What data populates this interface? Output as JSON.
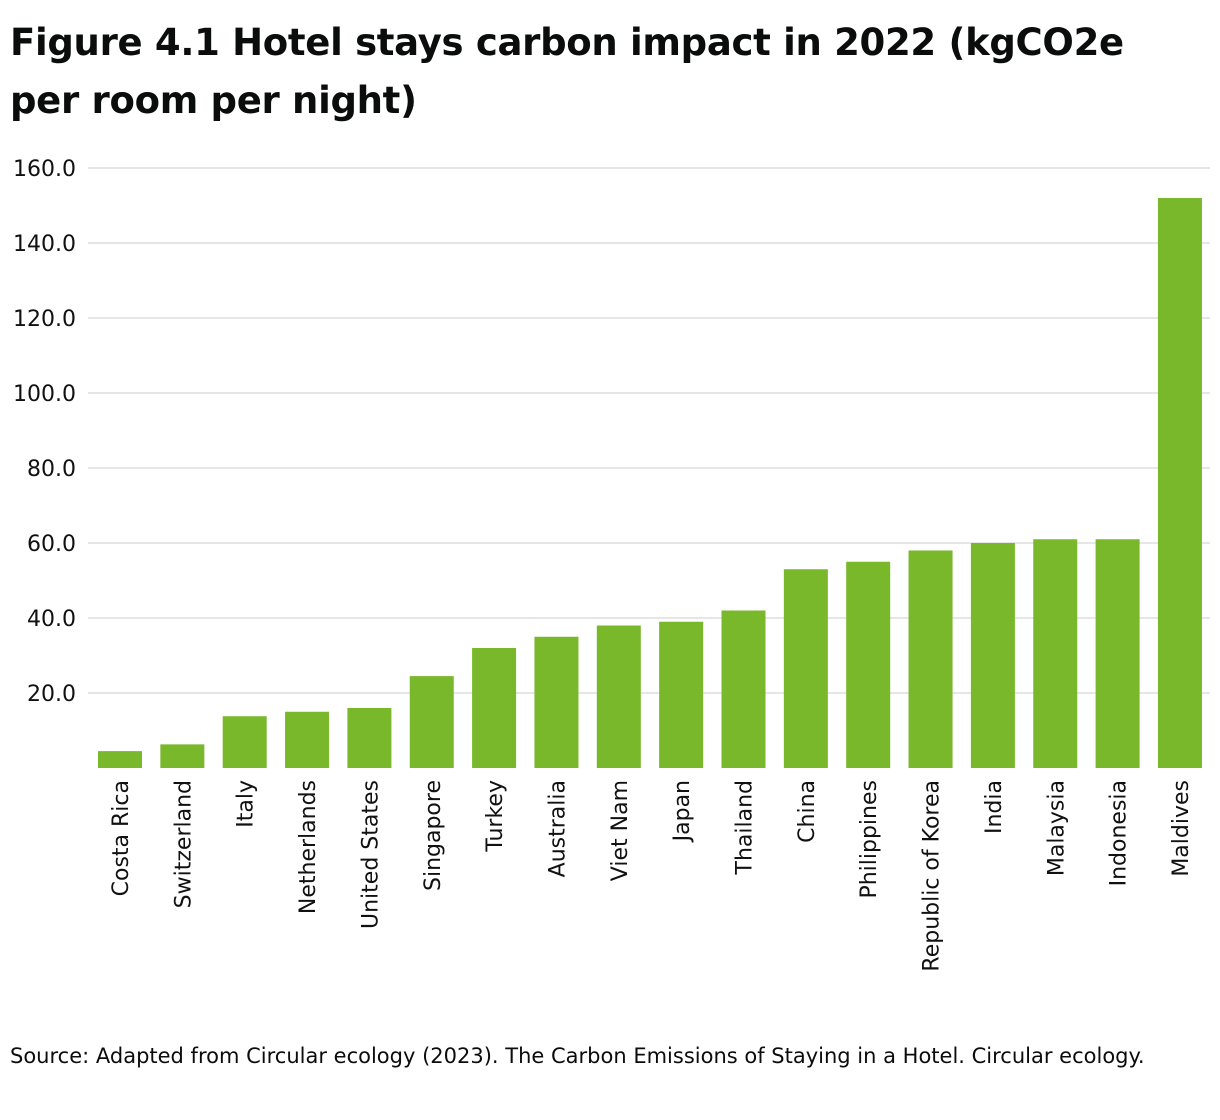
{
  "chart_data": {
    "type": "bar",
    "title": "Figure 4.1 Hotel stays carbon impact in 2022 (kgCO2e per room per night)",
    "xlabel": "",
    "ylabel": "",
    "categories": [
      "Costa Rica",
      "Switzerland",
      "Italy",
      "Netherlands",
      "United States",
      "Singapore",
      "Turkey",
      "Australia",
      "Viet Nam",
      "Japan",
      "Thailand",
      "China",
      "Philippines",
      "Republic of Korea",
      "India",
      "Malaysia",
      "Indonesia",
      "Maldives"
    ],
    "values": [
      4.5,
      6.3,
      13.8,
      15,
      16,
      24.5,
      32,
      35,
      38,
      39,
      42,
      53,
      55,
      58,
      60,
      61,
      61,
      152
    ],
    "ylim": [
      0,
      160
    ],
    "yticks": [
      "20.0",
      "40.0",
      "60.0",
      "80.0",
      "100.0",
      "120.0",
      "140.0",
      "160.0"
    ],
    "grid": true,
    "legend": "none",
    "bar_color": "#78b82a",
    "grid_color": "#dddddd"
  },
  "source": "Source: Adapted from Circular ecology (2023). The Carbon Emissions of Staying in a Hotel. Circular ecology."
}
